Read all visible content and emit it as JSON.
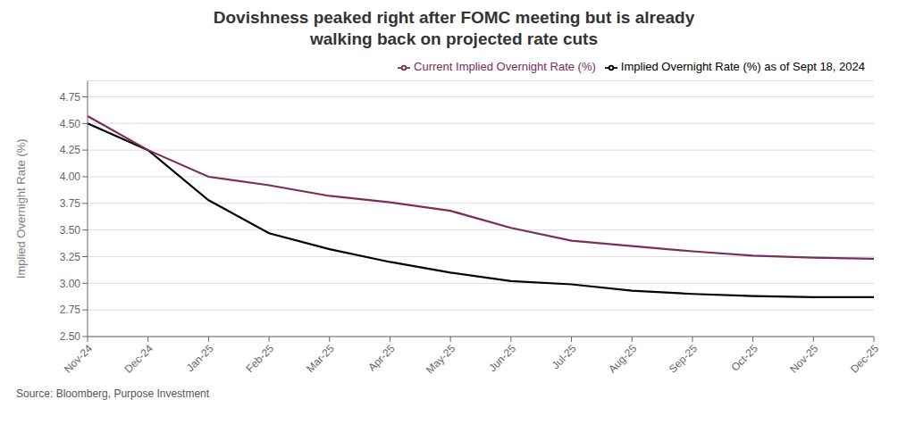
{
  "chart_data": {
    "type": "line",
    "title": "Dovishness peaked right after FOMC meeting but is already\nwalking back on projected rate cuts",
    "y_label": "Implied Overnight Rate (%)",
    "annotations": [
      "Source: Bloomberg, Purpose Investment"
    ],
    "categories": [
      "Nov-24",
      "Dec-24",
      "Jan-25",
      "Feb-25",
      "Mar-25",
      "Apr-25",
      "May-25",
      "Jun-25",
      "Jul-25",
      "Aug-25",
      "Sep-25",
      "Oct-25",
      "Nov-25",
      "Dec-25"
    ],
    "series": [
      {
        "name": "Implied Overnight Rate (%) as of Sept 18, 2024",
        "color": "#000000",
        "values": [
          4.5,
          4.25,
          3.78,
          3.47,
          3.32,
          3.2,
          3.1,
          3.02,
          2.99,
          2.93,
          2.9,
          2.88,
          2.87,
          2.87
        ]
      },
      {
        "name": "Current Implied Overnight Rate (%)",
        "color": "#7B2D5E",
        "values": [
          4.57,
          4.25,
          4.0,
          3.92,
          3.82,
          3.76,
          3.68,
          3.52,
          3.4,
          3.35,
          3.3,
          3.26,
          3.24,
          3.23
        ]
      }
    ],
    "ylim": [
      2.5,
      4.9
    ],
    "yticks": [
      {
        "value": 2.5,
        "label": "2.50"
      },
      {
        "value": 2.75,
        "label": "2.75"
      },
      {
        "value": 3.0,
        "label": "3.00"
      },
      {
        "value": 3.25,
        "label": "3.25"
      },
      {
        "value": 3.5,
        "label": "3.50"
      },
      {
        "value": 3.75,
        "label": "3.75"
      },
      {
        "value": 4.0,
        "label": "4.00"
      },
      {
        "value": 4.25,
        "label": "4.25"
      },
      {
        "value": 4.5,
        "label": "4.50"
      },
      {
        "value": 4.75,
        "label": "4.75"
      }
    ],
    "grid": true,
    "legend": "upper right"
  }
}
